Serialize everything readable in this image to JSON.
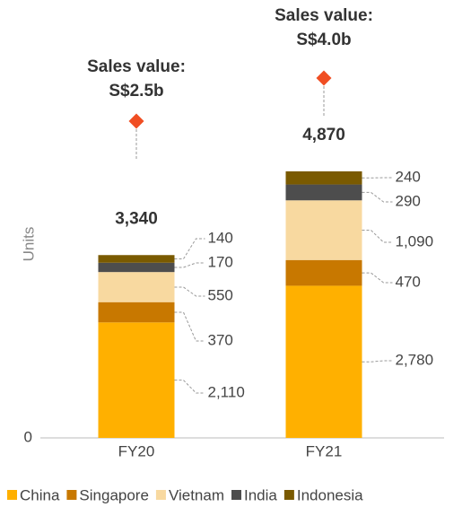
{
  "chart_data": {
    "type": "stacked_bar",
    "y_label": "Units",
    "categories": [
      "FY20",
      "FY21"
    ],
    "series": [
      {
        "name": "China",
        "color": "#FFB000",
        "values": [
          2110,
          2780
        ],
        "value_labels": [
          "2,110",
          "2,780"
        ]
      },
      {
        "name": "Singapore",
        "color": "#C87800",
        "values": [
          370,
          470
        ]
      },
      {
        "name": "Vietnam",
        "color": "#F8D9A0",
        "values": [
          550,
          1090
        ],
        "value_labels": [
          "550",
          "1,090"
        ]
      },
      {
        "name": "India",
        "color": "#4D4D4D",
        "values": [
          170,
          290
        ]
      },
      {
        "name": "Indonesia",
        "color": "#7A5A00",
        "values": [
          140,
          240
        ]
      }
    ],
    "totals": [
      3340,
      4870
    ],
    "totals_labels": [
      "3,340",
      "4,870"
    ],
    "annotations": [
      [
        "Sales value:",
        "S$2.5b"
      ],
      [
        "Sales value:",
        "S$4.0b"
      ]
    ],
    "annotation_color": "#F04E23",
    "ylim": [
      0,
      8000
    ],
    "yticks": [
      0
    ],
    "legend": "bottom"
  }
}
